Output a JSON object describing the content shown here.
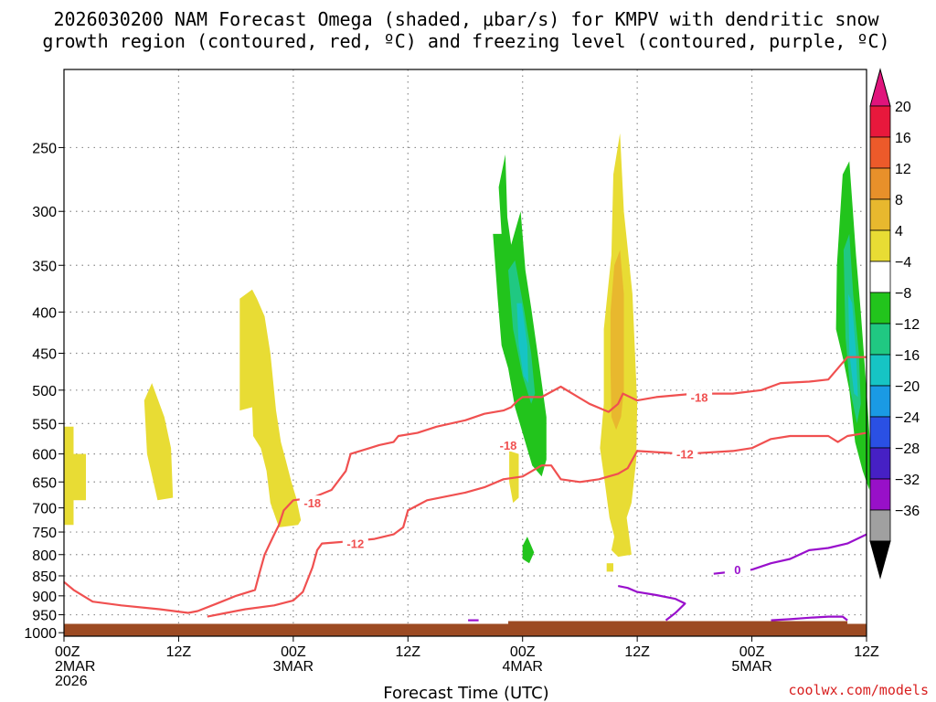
{
  "chart_data": {
    "type": "heatmap",
    "title_lines": [
      "2026030200 NAM Forecast Omega (shaded, μbar/s) for KMPV with dendritic snow",
      "growth region (contoured, red, ºC) and freezing level (contoured, purple, ºC)"
    ],
    "xlabel": "Forecast Time (UTC)",
    "ylabel": "",
    "x_ticks": [
      {
        "hour": 0,
        "lines": [
          "00Z",
          "2MAR",
          "2026"
        ]
      },
      {
        "hour": 12,
        "lines": [
          "12Z"
        ]
      },
      {
        "hour": 24,
        "lines": [
          "00Z",
          "3MAR"
        ]
      },
      {
        "hour": 36,
        "lines": [
          "12Z"
        ]
      },
      {
        "hour": 48,
        "lines": [
          "00Z",
          "4MAR"
        ]
      },
      {
        "hour": 60,
        "lines": [
          "12Z"
        ]
      },
      {
        "hour": 72,
        "lines": [
          "00Z",
          "5MAR"
        ]
      },
      {
        "hour": 84,
        "lines": [
          "12Z"
        ]
      }
    ],
    "xlim": [
      0,
      84
    ],
    "y_levels": [
      250,
      300,
      350,
      400,
      450,
      500,
      550,
      600,
      650,
      700,
      750,
      800,
      850,
      900,
      950,
      1000
    ],
    "ylim": [
      200,
      1010
    ],
    "ground_pressure_approx": 975,
    "colorbar": {
      "labels": [
        "20",
        "16",
        "12",
        "8",
        "4",
        "−4",
        "−8",
        "−12",
        "−16",
        "−20",
        "−24",
        "−28",
        "−32",
        "−36"
      ],
      "colors": [
        "#e8183c",
        "#ec5a2a",
        "#e8902a",
        "#e8b82e",
        "#e8dc34",
        "#ffffff",
        "#22c41c",
        "#20c882",
        "#16c4c4",
        "#1a9ae4",
        "#2a50e4",
        "#4620c4",
        "#9810c8",
        "#a0a0a0"
      ],
      "top_arrow_color": "#e0147c",
      "bottom_arrow_color": "#000000"
    },
    "omega_regions": [
      {
        "level": 4,
        "color": "#e8dc34",
        "points": [
          [
            0,
            555
          ],
          [
            1,
            555
          ],
          [
            1,
            600
          ],
          [
            2.3,
            600
          ],
          [
            2.3,
            685
          ],
          [
            1,
            685
          ],
          [
            1,
            735
          ],
          [
            0,
            735
          ]
        ]
      },
      {
        "level": 4,
        "color": "#e8dc34",
        "points": [
          [
            8.4,
            515
          ],
          [
            9.2,
            490
          ],
          [
            10.5,
            540
          ],
          [
            11.2,
            590
          ],
          [
            11.4,
            680
          ],
          [
            9.8,
            685
          ],
          [
            8.7,
            600
          ]
        ]
      },
      {
        "level": 4,
        "color": "#e8dc34",
        "points": [
          [
            18.4,
            385
          ],
          [
            19.7,
            375
          ],
          [
            20.2,
            385
          ],
          [
            21,
            405
          ],
          [
            21.6,
            450
          ],
          [
            22.2,
            530
          ],
          [
            22.7,
            580
          ],
          [
            23.2,
            610
          ],
          [
            23.8,
            650
          ],
          [
            24.3,
            680
          ],
          [
            24.8,
            725
          ],
          [
            24.5,
            735
          ],
          [
            22.5,
            740
          ],
          [
            21.6,
            690
          ],
          [
            21.2,
            630
          ],
          [
            20.6,
            590
          ],
          [
            19.8,
            570
          ],
          [
            19.7,
            525
          ],
          [
            18.4,
            530
          ]
        ]
      },
      {
        "level": 4,
        "color": "#e8dc34",
        "points": [
          [
            46.6,
            595
          ],
          [
            47.6,
            600
          ],
          [
            47.6,
            680
          ],
          [
            47,
            690
          ],
          [
            46.6,
            650
          ]
        ]
      },
      {
        "level": 4,
        "color": "#e8dc34",
        "points": [
          [
            57.5,
            270
          ],
          [
            58.2,
            240
          ],
          [
            58.6,
            300
          ],
          [
            59.5,
            380
          ],
          [
            60,
            520
          ],
          [
            59.9,
            610
          ],
          [
            59.4,
            690
          ],
          [
            58.9,
            720
          ],
          [
            59.1,
            750
          ],
          [
            59.4,
            800
          ],
          [
            58,
            805
          ],
          [
            57.3,
            790
          ],
          [
            57.6,
            760
          ],
          [
            57.1,
            720
          ],
          [
            56.6,
            650
          ],
          [
            56.1,
            590
          ],
          [
            56.5,
            520
          ],
          [
            56.5,
            420
          ],
          [
            57.3,
            340
          ]
        ]
      },
      {
        "level": 4,
        "color": "#e8dc34",
        "points": [
          [
            56.8,
            820
          ],
          [
            57.5,
            820
          ],
          [
            57.5,
            840
          ],
          [
            56.8,
            840
          ]
        ]
      },
      {
        "level": 8,
        "color": "#e8b82e",
        "points": [
          [
            57.6,
            350
          ],
          [
            58.2,
            335
          ],
          [
            58.6,
            380
          ],
          [
            58.6,
            500
          ],
          [
            58.3,
            540
          ],
          [
            57.8,
            560
          ],
          [
            57.3,
            540
          ],
          [
            57.2,
            470
          ],
          [
            57.2,
            400
          ]
        ]
      },
      {
        "level": -4,
        "color": "#22c41c",
        "points": [
          [
            45.5,
            280
          ],
          [
            46.2,
            255
          ],
          [
            46.4,
            305
          ],
          [
            46.8,
            330
          ],
          [
            47.8,
            300
          ],
          [
            48.3,
            355
          ],
          [
            48.9,
            395
          ],
          [
            49.9,
            480
          ],
          [
            50.5,
            540
          ],
          [
            50.5,
            610
          ],
          [
            50,
            640
          ],
          [
            49,
            620
          ],
          [
            47.2,
            525
          ],
          [
            46.5,
            470
          ],
          [
            45.8,
            440
          ],
          [
            45.4,
            385
          ],
          [
            44.9,
            320
          ],
          [
            45.8,
            320
          ]
        ]
      },
      {
        "level": -4,
        "color": "#22c41c",
        "points": [
          [
            48,
            780
          ],
          [
            48.5,
            760
          ],
          [
            49.2,
            795
          ],
          [
            48.7,
            820
          ],
          [
            48,
            810
          ]
        ]
      },
      {
        "level": -4,
        "color": "#22c41c",
        "points": [
          [
            81.5,
            270
          ],
          [
            82.2,
            260
          ],
          [
            82.9,
            340
          ],
          [
            83.4,
            400
          ],
          [
            84,
            500
          ],
          [
            84.3,
            565
          ],
          [
            84.5,
            620
          ],
          [
            84.3,
            665
          ],
          [
            83.6,
            630
          ],
          [
            82.8,
            580
          ],
          [
            82.2,
            500
          ],
          [
            81.6,
            460
          ],
          [
            80.8,
            420
          ],
          [
            80.9,
            350
          ]
        ]
      },
      {
        "level": -8,
        "color": "#20c882",
        "points": [
          [
            46.5,
            355
          ],
          [
            47.2,
            345
          ],
          [
            48.2,
            400
          ],
          [
            48.9,
            450
          ],
          [
            49.3,
            505
          ],
          [
            48.9,
            520
          ],
          [
            48,
            480
          ],
          [
            47,
            420
          ]
        ]
      },
      {
        "level": -8,
        "color": "#20c882",
        "points": [
          [
            81.6,
            335
          ],
          [
            82.2,
            320
          ],
          [
            82.6,
            380
          ],
          [
            83.2,
            450
          ],
          [
            83.4,
            520
          ],
          [
            83,
            550
          ],
          [
            82.3,
            500
          ],
          [
            81.8,
            430
          ]
        ]
      },
      {
        "level": -12,
        "color": "#16c4c4",
        "points": [
          [
            47.4,
            390
          ],
          [
            47.9,
            390
          ],
          [
            48.5,
            440
          ],
          [
            48.6,
            490
          ],
          [
            48.1,
            480
          ],
          [
            47.6,
            440
          ]
        ]
      },
      {
        "level": -12,
        "color": "#16c4c4",
        "points": [
          [
            82.1,
            380
          ],
          [
            82.5,
            390
          ],
          [
            82.9,
            450
          ],
          [
            83.1,
            510
          ],
          [
            82.7,
            505
          ],
          [
            82.2,
            450
          ]
        ]
      }
    ],
    "isotherms": [
      {
        "label": "-18",
        "color": "#f05050",
        "points": [
          [
            0,
            865
          ],
          [
            1,
            885
          ],
          [
            3,
            915
          ],
          [
            6,
            925
          ],
          [
            10,
            935
          ],
          [
            13,
            945
          ],
          [
            14,
            940
          ],
          [
            16,
            920
          ],
          [
            18,
            900
          ],
          [
            20,
            885
          ],
          [
            20.5,
            840
          ],
          [
            21,
            800
          ],
          [
            22,
            755
          ],
          [
            22.5,
            735
          ],
          [
            23,
            705
          ],
          [
            24,
            685
          ],
          [
            26,
            680
          ],
          [
            28,
            665
          ],
          [
            29.5,
            630
          ],
          [
            30,
            600
          ],
          [
            32,
            590
          ],
          [
            33,
            585
          ],
          [
            34.5,
            580
          ],
          [
            35,
            570
          ],
          [
            37,
            565
          ],
          [
            39,
            555
          ],
          [
            42,
            545
          ],
          [
            44,
            535
          ],
          [
            46,
            530
          ],
          [
            46.8,
            525
          ],
          [
            47.5,
            515
          ],
          [
            48,
            510
          ],
          [
            50,
            510
          ],
          [
            52,
            495
          ],
          [
            55,
            520
          ],
          [
            57,
            532
          ],
          [
            58,
            520
          ],
          [
            58.5,
            505
          ],
          [
            60,
            515
          ],
          [
            62,
            510
          ],
          [
            66,
            505
          ],
          [
            70,
            505
          ],
          [
            73,
            500
          ],
          [
            75,
            490
          ],
          [
            78,
            488
          ],
          [
            80,
            485
          ],
          [
            82,
            455
          ],
          [
            83,
            455
          ],
          [
            84,
            455
          ]
        ],
        "label_at": [
          [
            26,
            690
          ],
          [
            46.5,
            585
          ],
          [
            66.5,
            510
          ]
        ]
      },
      {
        "label": "-12",
        "color": "#f05050",
        "points": [
          [
            15,
            955
          ],
          [
            17,
            945
          ],
          [
            19,
            935
          ],
          [
            22,
            925
          ],
          [
            24,
            912
          ],
          [
            25,
            890
          ],
          [
            26,
            830
          ],
          [
            26.5,
            790
          ],
          [
            27,
            775
          ],
          [
            30,
            770
          ],
          [
            32.5,
            765
          ],
          [
            34.5,
            755
          ],
          [
            35.5,
            740
          ],
          [
            36,
            705
          ],
          [
            37,
            695
          ],
          [
            38,
            685
          ],
          [
            42,
            670
          ],
          [
            44,
            660
          ],
          [
            46,
            645
          ],
          [
            48,
            640
          ],
          [
            50,
            620
          ],
          [
            51,
            620
          ],
          [
            52,
            645
          ],
          [
            54,
            650
          ],
          [
            56,
            645
          ],
          [
            58,
            635
          ],
          [
            59,
            625
          ],
          [
            60,
            595
          ],
          [
            65,
            600
          ],
          [
            70,
            595
          ],
          [
            72,
            590
          ],
          [
            74,
            575
          ],
          [
            76,
            570
          ],
          [
            78,
            570
          ],
          [
            80,
            570
          ],
          [
            81,
            580
          ],
          [
            82,
            570
          ],
          [
            84,
            565
          ]
        ],
        "label_at": [
          [
            30.5,
            775
          ],
          [
            65,
            600
          ]
        ]
      },
      {
        "label": "0",
        "color": "#9910cc",
        "points": [
          [
            58,
            875
          ],
          [
            59,
            880
          ],
          [
            60,
            890
          ],
          [
            62,
            898
          ],
          [
            64,
            908
          ],
          [
            65,
            920
          ],
          [
            64,
            945
          ],
          [
            63,
            965
          ]
        ],
        "label_at": []
      },
      {
        "label": "0",
        "color": "#9910cc",
        "points": [
          [
            68,
            845
          ],
          [
            70,
            840
          ],
          [
            72,
            835
          ],
          [
            74,
            820
          ],
          [
            76,
            810
          ],
          [
            78,
            790
          ],
          [
            80,
            785
          ],
          [
            82,
            775
          ],
          [
            84,
            755
          ]
        ],
        "label_at": [
          [
            70.5,
            835
          ]
        ]
      },
      {
        "label": "0",
        "color": "#9910cc",
        "points": [
          [
            74,
            965
          ],
          [
            76,
            962
          ],
          [
            78,
            958
          ],
          [
            80,
            955
          ],
          [
            81.5,
            955
          ],
          [
            82,
            965
          ]
        ],
        "label_at": []
      },
      {
        "label": "0",
        "color": "#9910cc",
        "points": [
          [
            42.3,
            965
          ],
          [
            43.4,
            965
          ]
        ],
        "label_at": []
      }
    ],
    "ground_color": "#9c4a22",
    "credit": "coolwx.com/models"
  }
}
